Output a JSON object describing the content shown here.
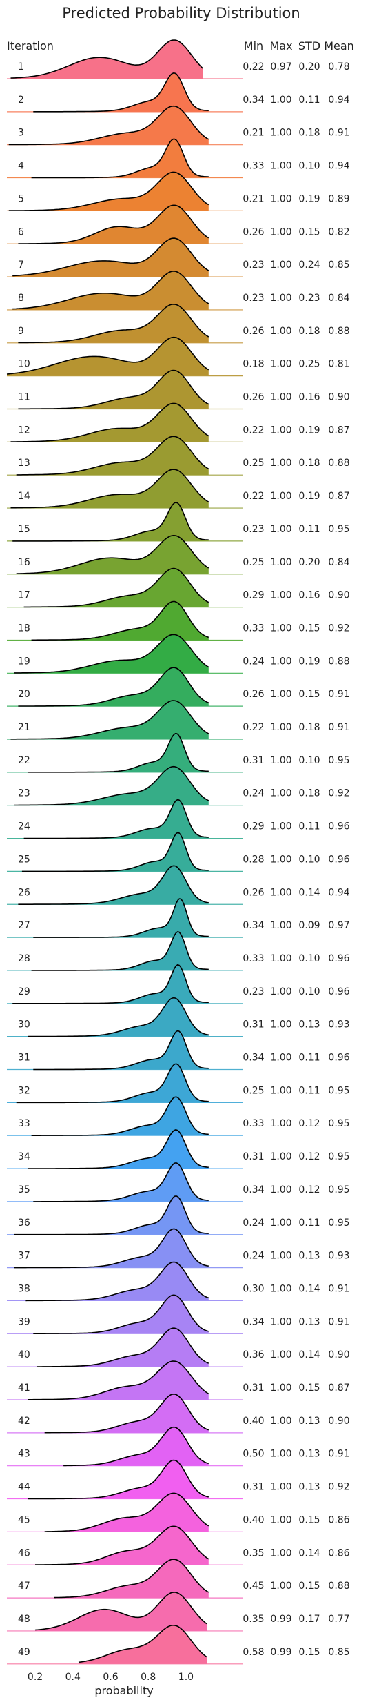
{
  "chart_data": {
    "type": "area",
    "title": "Predicted Probability Distribution",
    "row_header": "Iteration",
    "stat_headers": [
      "Min",
      "Max",
      "STD",
      "Mean"
    ],
    "xlabel": "probability",
    "xticks": [
      "0.2",
      "0.4",
      "0.6",
      "0.8",
      "1.0"
    ],
    "xtick_values": [
      0.2,
      0.4,
      0.6,
      0.8,
      1.0
    ],
    "xlim": [
      0.05,
      1.3
    ],
    "rows": [
      {
        "iteration": "1",
        "min": "0.22",
        "max": "0.97",
        "std": "0.20",
        "mean": "0.78",
        "color": "#f77189"
      },
      {
        "iteration": "2",
        "min": "0.34",
        "max": "1.00",
        "std": "0.11",
        "mean": "0.94",
        "color": "#f7754f"
      },
      {
        "iteration": "3",
        "min": "0.21",
        "max": "1.00",
        "std": "0.18",
        "mean": "0.91",
        "color": "#f5794a"
      },
      {
        "iteration": "4",
        "min": "0.33",
        "max": "1.00",
        "std": "0.10",
        "mean": "0.94",
        "color": "#f27d3e"
      },
      {
        "iteration": "5",
        "min": "0.21",
        "max": "1.00",
        "std": "0.19",
        "mean": "0.89",
        "color": "#ec8232"
      },
      {
        "iteration": "6",
        "min": "0.26",
        "max": "1.00",
        "std": "0.15",
        "mean": "0.82",
        "color": "#e08631"
      },
      {
        "iteration": "7",
        "min": "0.23",
        "max": "1.00",
        "std": "0.24",
        "mean": "0.85",
        "color": "#d48a31"
      },
      {
        "iteration": "8",
        "min": "0.23",
        "max": "1.00",
        "std": "0.23",
        "mean": "0.84",
        "color": "#ca8e31"
      },
      {
        "iteration": "9",
        "min": "0.26",
        "max": "1.00",
        "std": "0.18",
        "mean": "0.88",
        "color": "#c09131"
      },
      {
        "iteration": "10",
        "min": "0.18",
        "max": "1.00",
        "std": "0.25",
        "mean": "0.81",
        "color": "#b69431"
      },
      {
        "iteration": "11",
        "min": "0.26",
        "max": "1.00",
        "std": "0.16",
        "mean": "0.90",
        "color": "#ad9631"
      },
      {
        "iteration": "12",
        "min": "0.22",
        "max": "1.00",
        "std": "0.19",
        "mean": "0.87",
        "color": "#a49931"
      },
      {
        "iteration": "13",
        "min": "0.25",
        "max": "1.00",
        "std": "0.18",
        "mean": "0.88",
        "color": "#9a9b31"
      },
      {
        "iteration": "14",
        "min": "0.22",
        "max": "1.00",
        "std": "0.19",
        "mean": "0.87",
        "color": "#909d31"
      },
      {
        "iteration": "15",
        "min": "0.23",
        "max": "1.00",
        "std": "0.11",
        "mean": "0.95",
        "color": "#85a031"
      },
      {
        "iteration": "16",
        "min": "0.25",
        "max": "1.00",
        "std": "0.20",
        "mean": "0.84",
        "color": "#78a331"
      },
      {
        "iteration": "17",
        "min": "0.29",
        "max": "1.00",
        "std": "0.16",
        "mean": "0.90",
        "color": "#68a631"
      },
      {
        "iteration": "18",
        "min": "0.33",
        "max": "1.00",
        "std": "0.15",
        "mean": "0.92",
        "color": "#50a931"
      },
      {
        "iteration": "19",
        "min": "0.24",
        "max": "1.00",
        "std": "0.19",
        "mean": "0.88",
        "color": "#33ac45"
      },
      {
        "iteration": "20",
        "min": "0.26",
        "max": "1.00",
        "std": "0.15",
        "mean": "0.91",
        "color": "#34ad5e"
      },
      {
        "iteration": "21",
        "min": "0.22",
        "max": "1.00",
        "std": "0.18",
        "mean": "0.91",
        "color": "#35ae6f"
      },
      {
        "iteration": "22",
        "min": "0.31",
        "max": "1.00",
        "std": "0.10",
        "mean": "0.95",
        "color": "#35ae7c"
      },
      {
        "iteration": "23",
        "min": "0.24",
        "max": "1.00",
        "std": "0.18",
        "mean": "0.92",
        "color": "#36ad87"
      },
      {
        "iteration": "24",
        "min": "0.29",
        "max": "1.00",
        "std": "0.11",
        "mean": "0.96",
        "color": "#36ad91"
      },
      {
        "iteration": "25",
        "min": "0.28",
        "max": "1.00",
        "std": "0.10",
        "mean": "0.96",
        "color": "#37ad9a"
      },
      {
        "iteration": "26",
        "min": "0.26",
        "max": "1.00",
        "std": "0.14",
        "mean": "0.94",
        "color": "#38aca3"
      },
      {
        "iteration": "27",
        "min": "0.34",
        "max": "1.00",
        "std": "0.09",
        "mean": "0.97",
        "color": "#38abab"
      },
      {
        "iteration": "28",
        "min": "0.33",
        "max": "1.00",
        "std": "0.10",
        "mean": "0.96",
        "color": "#39abb3"
      },
      {
        "iteration": "29",
        "min": "0.23",
        "max": "1.00",
        "std": "0.10",
        "mean": "0.96",
        "color": "#3aaabb"
      },
      {
        "iteration": "30",
        "min": "0.31",
        "max": "1.00",
        "std": "0.13",
        "mean": "0.93",
        "color": "#3ba9c3"
      },
      {
        "iteration": "31",
        "min": "0.34",
        "max": "1.00",
        "std": "0.11",
        "mean": "0.96",
        "color": "#3ca8cc"
      },
      {
        "iteration": "32",
        "min": "0.25",
        "max": "1.00",
        "std": "0.11",
        "mean": "0.95",
        "color": "#3da7d6"
      },
      {
        "iteration": "33",
        "min": "0.33",
        "max": "1.00",
        "std": "0.12",
        "mean": "0.95",
        "color": "#3ea5e2"
      },
      {
        "iteration": "34",
        "min": "0.31",
        "max": "1.00",
        "std": "0.12",
        "mean": "0.95",
        "color": "#44a2f1"
      },
      {
        "iteration": "35",
        "min": "0.34",
        "max": "1.00",
        "std": "0.12",
        "mean": "0.95",
        "color": "#5f9cf4"
      },
      {
        "iteration": "36",
        "min": "0.24",
        "max": "1.00",
        "std": "0.11",
        "mean": "0.95",
        "color": "#7596f4"
      },
      {
        "iteration": "37",
        "min": "0.24",
        "max": "1.00",
        "std": "0.13",
        "mean": "0.93",
        "color": "#8790f4"
      },
      {
        "iteration": "38",
        "min": "0.30",
        "max": "1.00",
        "std": "0.14",
        "mean": "0.91",
        "color": "#988af4"
      },
      {
        "iteration": "39",
        "min": "0.34",
        "max": "1.00",
        "std": "0.13",
        "mean": "0.91",
        "color": "#a784f4"
      },
      {
        "iteration": "40",
        "min": "0.36",
        "max": "1.00",
        "std": "0.14",
        "mean": "0.90",
        "color": "#b57df4"
      },
      {
        "iteration": "41",
        "min": "0.31",
        "max": "1.00",
        "std": "0.15",
        "mean": "0.87",
        "color": "#c475f4"
      },
      {
        "iteration": "42",
        "min": "0.40",
        "max": "1.00",
        "std": "0.13",
        "mean": "0.90",
        "color": "#d36df4"
      },
      {
        "iteration": "43",
        "min": "0.50",
        "max": "1.00",
        "std": "0.13",
        "mean": "0.91",
        "color": "#e262f4"
      },
      {
        "iteration": "44",
        "min": "0.31",
        "max": "1.00",
        "std": "0.13",
        "mean": "0.92",
        "color": "#f15ff0"
      },
      {
        "iteration": "45",
        "min": "0.40",
        "max": "1.00",
        "std": "0.15",
        "mean": "0.86",
        "color": "#f462de"
      },
      {
        "iteration": "46",
        "min": "0.35",
        "max": "1.00",
        "std": "0.14",
        "mean": "0.86",
        "color": "#f566cc"
      },
      {
        "iteration": "47",
        "min": "0.45",
        "max": "1.00",
        "std": "0.15",
        "mean": "0.88",
        "color": "#f569bc"
      },
      {
        "iteration": "48",
        "min": "0.35",
        "max": "0.99",
        "std": "0.17",
        "mean": "0.77",
        "color": "#f66cad"
      },
      {
        "iteration": "49",
        "min": "0.58",
        "max": "0.99",
        "std": "0.15",
        "mean": "0.85",
        "color": "#f76f9c"
      }
    ]
  }
}
